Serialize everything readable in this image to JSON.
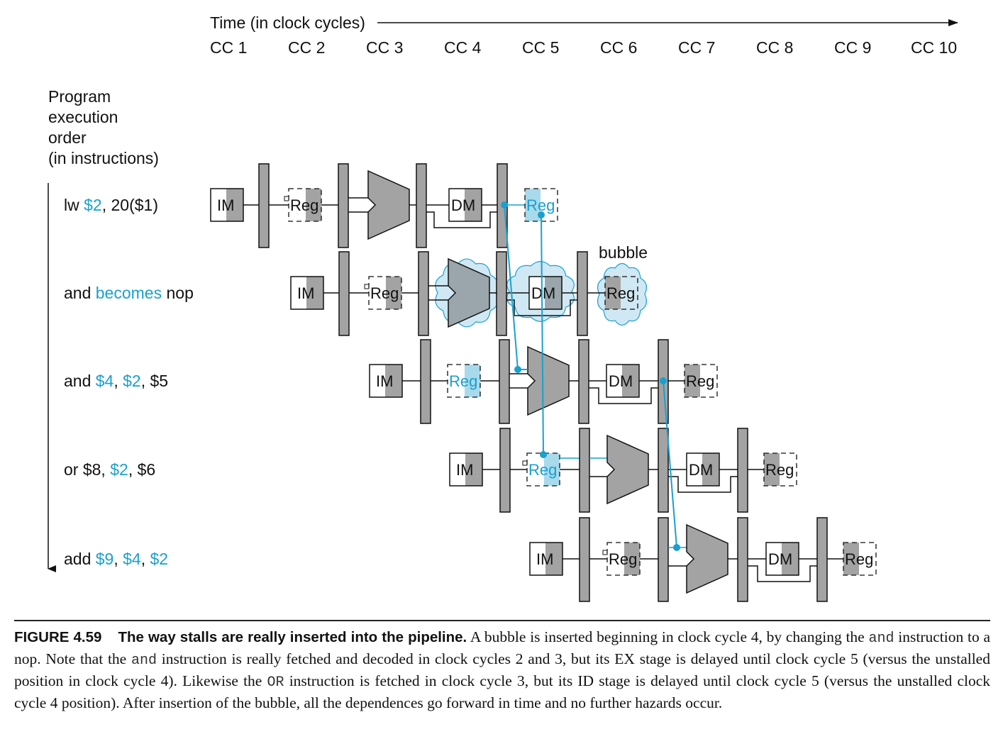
{
  "time_axis": {
    "label": "Time (in clock cycles)",
    "cycles": [
      "CC 1",
      "CC 2",
      "CC 3",
      "CC 4",
      "CC 5",
      "CC 6",
      "CC 7",
      "CC 8",
      "CC 9",
      "CC 10"
    ]
  },
  "order_label": [
    "Program",
    "execution",
    "order",
    "(in instructions)"
  ],
  "instructions": [
    {
      "parts": [
        {
          "t": "lw ",
          "hl": false
        },
        {
          "t": "$2",
          "hl": true
        },
        {
          "t": ", 20($1)",
          "hl": false
        }
      ]
    },
    {
      "parts": [
        {
          "t": "and ",
          "hl": false
        },
        {
          "t": "becomes",
          "hl": true
        },
        {
          "t": " nop",
          "hl": false
        }
      ]
    },
    {
      "parts": [
        {
          "t": "and ",
          "hl": false
        },
        {
          "t": "$4",
          "hl": true
        },
        {
          "t": ", ",
          "hl": false
        },
        {
          "t": "$2",
          "hl": true
        },
        {
          "t": ", $5",
          "hl": false
        }
      ]
    },
    {
      "parts": [
        {
          "t": "or $8, ",
          "hl": false
        },
        {
          "t": "$2",
          "hl": true
        },
        {
          "t": ", $6",
          "hl": false
        }
      ]
    },
    {
      "parts": [
        {
          "t": "add ",
          "hl": false
        },
        {
          "t": "$9",
          "hl": true
        },
        {
          "t": ", ",
          "hl": false
        },
        {
          "t": "$4",
          "hl": true
        },
        {
          "t": ", ",
          "hl": false
        },
        {
          "t": "$2",
          "hl": true
        }
      ]
    }
  ],
  "block_labels": {
    "im": "IM",
    "reg": "Reg",
    "dm": "DM"
  },
  "bubble_label": "bubble",
  "colors": {
    "accent": "#1aa0cf",
    "gray": "#a3a3a3",
    "cloud": "#cfe8f3",
    "highlight_fill": "#a8daeb"
  },
  "caption": {
    "figure": "FIGURE 4.59",
    "title": "The way stalls are really inserted into the pipeline.",
    "seg1": " A bubble is inserted beginning in clock cycle 4, by changing the ",
    "code1": "and",
    "seg2": " instruction to a nop. Note that the ",
    "code2": "and",
    "seg3": " instruction is really fetched and decoded in clock cycles 2 and 3, but its EX stage is delayed until clock cycle 5 (versus the unstalled position in clock cycle 4). Likewise the ",
    "code3": "OR",
    "seg4": " instruction is fetched in clock cycle 3, but its ID stage is delayed until clock cycle 5 (versus the unstalled clock cycle 4 position). After insertion of the bubble, all the dependences go forward in time and no further hazards occur."
  }
}
